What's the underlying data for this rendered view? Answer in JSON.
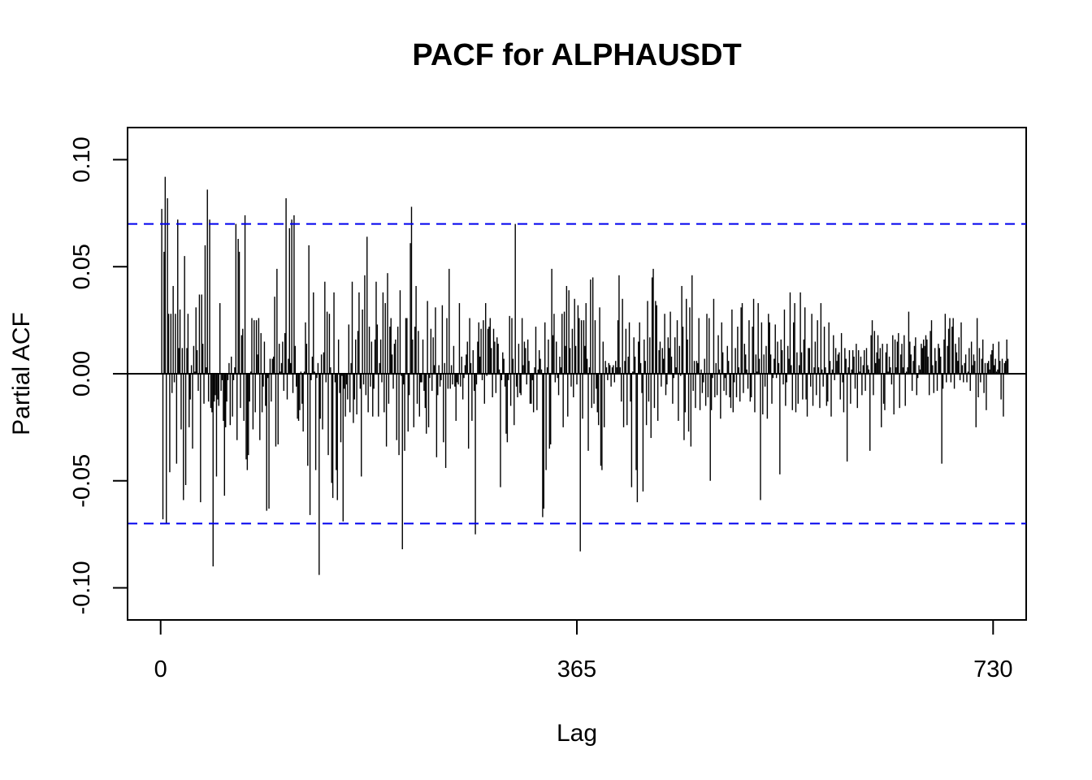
{
  "chart_data": {
    "type": "bar",
    "subtype": "pacf-spike",
    "title": "PACF for ALPHAUSDT",
    "xlabel": "Lag",
    "ylabel": "Partial ACF",
    "xlim": [
      -29,
      759
    ],
    "ylim": [
      -0.115,
      0.115
    ],
    "x_ticks": [
      0,
      365,
      730
    ],
    "x_tick_labels": [
      "0",
      "365",
      "730"
    ],
    "y_ticks": [
      -0.1,
      -0.05,
      0.0,
      0.05,
      0.1
    ],
    "y_tick_labels": [
      "-0.10",
      "-0.05",
      "0.00",
      "0.05",
      "0.10"
    ],
    "confidence_bound": 0.07,
    "confidence_color": "#0000ee",
    "bar_color": "#000000",
    "grid": false,
    "lag_start": 1,
    "values": [
      0.077,
      -0.068,
      0.057,
      0.092,
      -0.07,
      0.082,
      0.028,
      -0.046,
      0.028,
      -0.009,
      0.041,
      -0.004,
      0.028,
      -0.042,
      0.072,
      0.012,
      0.03,
      -0.026,
      0.012,
      -0.059,
      0.055,
      -0.052,
      0.012,
      0.028,
      -0.025,
      -0.012,
      0.004,
      -0.035,
      0.013,
      0.001,
      0.031,
      0.011,
      -0.008,
      0.037,
      -0.06,
      0.037,
      0.014,
      -0.014,
      0.06,
      0.003,
      0.086,
      -0.013,
      0.072,
      -0.016,
      -0.018,
      -0.09,
      -0.013,
      -0.01,
      -0.048,
      -0.012,
      -0.015,
      0.033,
      -0.008,
      -0.003,
      -0.022,
      -0.057,
      -0.025,
      -0.013,
      -0.003,
      0.005,
      -0.024,
      0.008,
      -0.02,
      -0.003,
      0.003,
      0.07,
      -0.031,
      0.063,
      0.057,
      -0.016,
      0.018,
      0.021,
      -0.022,
      0.074,
      -0.04,
      -0.045,
      -0.038,
      -0.013,
      0.001,
      0.026,
      -0.026,
      0.025,
      -0.018,
      0.025,
      0.009,
      0.026,
      -0.031,
      0.019,
      -0.018,
      -0.006,
      0.015,
      -0.015,
      -0.064,
      -0.002,
      -0.063,
      0.007,
      -0.013,
      0.007,
      0.008,
      0.036,
      -0.034,
      0.049,
      -0.033,
      0.014,
      0.001,
      0.005,
      0.015,
      -0.008,
      0.019,
      0.082,
      -0.012,
      0.007,
      0.068,
      0.005,
      0.072,
      -0.009,
      0.074,
      0.013,
      -0.006,
      -0.021,
      -0.022,
      -0.017,
      0.001,
      -0.014,
      -0.027,
      0.001,
      0.024,
      0.014,
      -0.043,
      0.06,
      -0.066,
      -0.003,
      0.008,
      0.038,
      0.001,
      -0.045,
      -0.002,
      0.005,
      -0.094,
      -0.021,
      0.009,
      -0.026,
      0.01,
      0.043,
      -0.004,
      0.029,
      -0.038,
      0.028,
      0.003,
      -0.051,
      -0.058,
      0.038,
      -0.004,
      -0.045,
      -0.059,
      0.016,
      -0.009,
      -0.032,
      -0.001,
      -0.069,
      -0.007,
      -0.02,
      -0.005,
      -0.012,
      0.023,
      -0.018,
      0.005,
      0.043,
      -0.023,
      -0.012,
      0.016,
      -0.019,
      0.02,
      0.038,
      -0.007,
      -0.048,
      0.03,
      -0.005,
      0.046,
      -0.01,
      0.064,
      -0.018,
      0.022,
      -0.006,
      0.015,
      -0.02,
      -0.007,
      0.016,
      0.043,
      0.023,
      -0.02,
      0.005,
      0.016,
      -0.004,
      0.038,
      -0.018,
      0.033,
      -0.034,
      0.047,
      -0.014,
      0.022,
      0.026,
      0.009,
      -0.007,
      0.014,
      0.016,
      -0.031,
      0.022,
      -0.038,
      0.039,
      -0.001,
      -0.082,
      -0.005,
      -0.036,
      0.026,
      0.026,
      -0.027,
      -0.01,
      0.061,
      0.078,
      0.016,
      -0.025,
      0.022,
      0.041,
      -0.014,
      0.02,
      -0.02,
      -0.004,
      -0.004,
      0.016,
      -0.008,
      -0.016,
      -0.028,
      0.034,
      -0.025,
      -0.002,
      0.021,
      -0.008,
      0.017,
      0.004,
      0.031,
      -0.039,
      -0.01,
      0.004,
      -0.006,
      -0.003,
      0.032,
      -0.032,
      0.005,
      -0.044,
      0.026,
      -0.007,
      0.049,
      -0.007,
      0.004,
      -0.005,
      0.013,
      -0.006,
      -0.022,
      -0.004,
      -0.005,
      0.033,
      -0.006,
      0.008,
      -0.012,
      -0.002,
      0.004,
      0.009,
      0.015,
      -0.035,
      0.026,
      0.005,
      -0.022,
      0.011,
      -0.008,
      -0.075,
      -0.005,
      0.015,
      0.024,
      0.008,
      0.021,
      -0.003,
      0.025,
      -0.014,
      0.033,
      -0.001,
      0.021,
      0.022,
      0.026,
      0.012,
      -0.011,
      0.021,
      0.015,
      -0.009,
      0.017,
      0.014,
      0.002,
      -0.053,
      -0.003,
      0.01,
      0.007,
      -0.006,
      -0.028,
      -0.032,
      -0.003,
      0.027,
      -0.015,
      0.026,
      0.007,
      -0.024,
      0.07,
      -0.006,
      -0.011,
      0.014,
      -0.009,
      -0.01,
      0.026,
      0.004,
      0.015,
      0.012,
      -0.005,
      0.016,
      0.006,
      -0.014,
      -0.014,
      -0.003,
      -0.018,
      0.003,
      0.022,
      -0.017,
      0.002,
      0.011,
      0.007,
      0.002,
      -0.067,
      -0.063,
      0.024,
      -0.045,
      0.003,
      0.016,
      -0.035,
      -0.033,
      0.049,
      0.018,
      0.028,
      -0.004,
      0.015,
      -0.002,
      -0.01,
      0.008,
      0.003,
      0.028,
      -0.025,
      0.029,
      0.013,
      0.041,
      -0.02,
      0.039,
      0.012,
      -0.006,
      0.021,
      -0.011,
      0.035,
      0.013,
      -0.005,
      0.032,
      0.026,
      -0.083,
      0.025,
      -0.021,
      0.025,
      0.013,
      0.033,
      0.007,
      -0.036,
      0.003,
      0.044,
      -0.016,
      0.045,
      -0.014,
      0.025,
      -0.007,
      -0.018,
      -0.024,
      0.031,
      -0.043,
      -0.045,
      0.015,
      -0.025,
      0.006,
      0.003,
      -0.003,
      0.005,
      0.004,
      -0.006,
      0.003,
      0.004,
      -0.004,
      0.006,
      0.003,
      0.025,
      0.046,
      0.003,
      -0.013,
      0.035,
      -0.025,
      0.006,
      0.021,
      -0.024,
      0.008,
      0.024,
      -0.013,
      -0.053,
      0.001,
      0.017,
      0.008,
      -0.045,
      -0.06,
      0.015,
      0.024,
      0.005,
      -0.009,
      -0.055,
      0.016,
      0.006,
      -0.024,
      0.034,
      -0.013,
      0.017,
      -0.03,
      0.045,
      0.049,
      -0.016,
      0.034,
      0.032,
      -0.022,
      0.011,
      0.015,
      -0.006,
      0.012,
      0.007,
      0.028,
      -0.01,
      -0.005,
      0.017,
      0.012,
      0.029,
      0.008,
      -0.014,
      -0.002,
      0.017,
      0.003,
      0.025,
      -0.022,
      0.013,
      -0.001,
      0.041,
      0.022,
      -0.031,
      -0.018,
      0.035,
      0.016,
      -0.027,
      0.031,
      -0.034,
      0.046,
      -0.008,
      0.006,
      -0.016,
      0.006,
      0.005,
      0.026,
      -0.017,
      0.002,
      -0.009,
      -0.004,
      0.007,
      -0.015,
      0.028,
      -0.011,
      0.026,
      -0.05,
      -0.017,
      -0.002,
      0.035,
      -0.011,
      0.005,
      -0.01,
      0.018,
      0.002,
      -0.021,
      0.024,
      0.01,
      -0.008,
      -0.002,
      -0.01,
      0.013,
      0.006,
      -0.011,
      -0.016,
      0.03,
      -0.018,
      -0.004,
      0.012,
      -0.011,
      0.022,
      0.003,
      -0.013,
      0.031,
      0.033,
      -0.009,
      0.014,
      0.009,
      0.002,
      -0.007,
      0.025,
      -0.013,
      -0.011,
      0.022,
      0.035,
      -0.018,
      0.009,
      0.001,
      0.033,
      0.007,
      -0.059,
      0.024,
      -0.019,
      0.009,
      -0.006,
      0.013,
      -0.021,
      0.028,
      0.024,
      0.009,
      -0.014,
      -0.002,
      0.007,
      0.023,
      -0.002,
      0.015,
      0.005,
      -0.047,
      0.016,
      0.011,
      -0.005,
      0.03,
      -0.015,
      -0.004,
      0.013,
      0.007,
      0.038,
      0.004,
      -0.017,
      0.024,
      0.033,
      -0.018,
      0.01,
      -0.014,
      0.004,
      0.038,
      0.01,
      -0.012,
      0.016,
      0.031,
      -0.012,
      -0.02,
      0.012,
      0.012,
      -0.006,
      0.028,
      -0.015,
      0.003,
      0.015,
      -0.01,
      0.025,
      0.003,
      -0.016,
      0.033,
      0.002,
      -0.006,
      0.022,
      0.003,
      -0.015,
      -0.013,
      0.024,
      0.006,
      -0.02,
      0.002,
      0.018,
      -0.003,
      0.012,
      0.006,
      0.009,
      0.01,
      -0.012,
      0.019,
      -0.004,
      -0.018,
      0.012,
      0.007,
      -0.041,
      0.003,
      0.011,
      -0.014,
      0.002,
      0.011,
      0.008,
      -0.007,
      0.014,
      -0.016,
      0.011,
      0.001,
      0.008,
      -0.01,
      0.004,
      0.011,
      -0.008,
      0.012,
      0.004,
      0.002,
      -0.036,
      0.018,
      0.025,
      -0.01,
      0.02,
      0.005,
      0.01,
      0.018,
      0.007,
      0.012,
      -0.025,
      0.014,
      -0.014,
      -0.017,
      0.01,
      0.014,
      0.001,
      0.008,
      0.003,
      -0.005,
      0.018,
      -0.019,
      0.016,
      0.003,
      0.015,
      0.019,
      -0.016,
      0.009,
      0.014,
      0.003,
      0.018,
      -0.015,
      0.001,
      0.003,
      0.029,
      0.015,
      0.009,
      -0.008,
      0.006,
      0.013,
      0.017,
      -0.01,
      -0.002,
      0.004,
      0.002,
      0.014,
      0.012,
      0.016,
      0.013,
      0.018,
      0.016,
      0.008,
      -0.01,
      0.02,
      0.025,
      0.004,
      -0.009,
      0.012,
      0.006,
      -0.008,
      0.014,
      0.012,
      0.008,
      -0.042,
      -0.007,
      0.016,
      0.028,
      -0.004,
      0.013,
      0.021,
      0.026,
      -0.004,
      0.022,
      0.026,
      -0.007,
      0.014,
      0.01,
      0.006,
      0.017,
      -0.003,
      0.024,
      0.004,
      -0.004,
      0.005,
      0.009,
      -0.004,
      0.001,
      0.012,
      -0.008,
      0.015,
      0.004,
      0.009,
      0.006,
      -0.025,
      0.026,
      -0.011,
      0.012,
      -0.004,
      0.007,
      0.016,
      -0.009,
      0.005,
      -0.017,
      0.005,
      0.006,
      0.002,
      0.009,
      0.011,
      0.014,
      0.004,
      0.007,
      0.001,
      0.002,
      0.015,
      0.006,
      -0.012,
      0.007,
      -0.02,
      0.005,
      0.006,
      0.016,
      0.007
    ]
  }
}
